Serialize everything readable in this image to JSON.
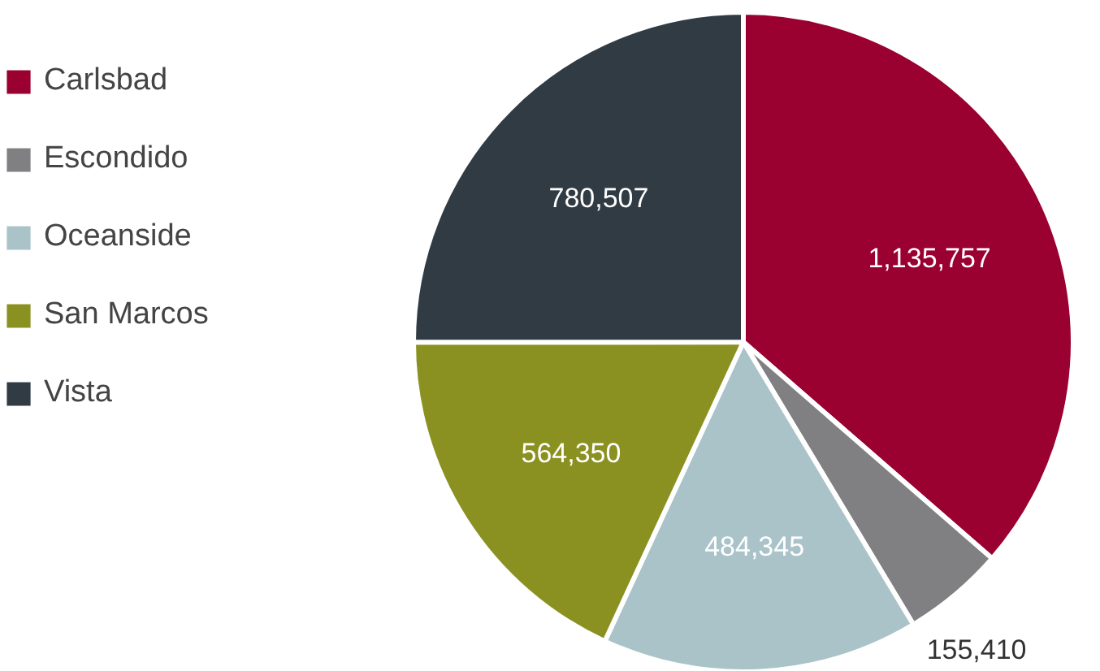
{
  "chart_data": {
    "type": "pie",
    "categories": [
      "Carlsbad",
      "Escondido",
      "Oceanside",
      "San Marcos",
      "Vista"
    ],
    "values": [
      1135757,
      155410,
      484345,
      564350,
      780507
    ],
    "colors": [
      "#9a0030",
      "#808083",
      "#a9c3c9",
      "#8a9120",
      "#303b44"
    ],
    "value_labels": [
      "1,135,757",
      "155,410",
      "484,345",
      "564,350",
      "780,507"
    ],
    "legend": "left"
  }
}
